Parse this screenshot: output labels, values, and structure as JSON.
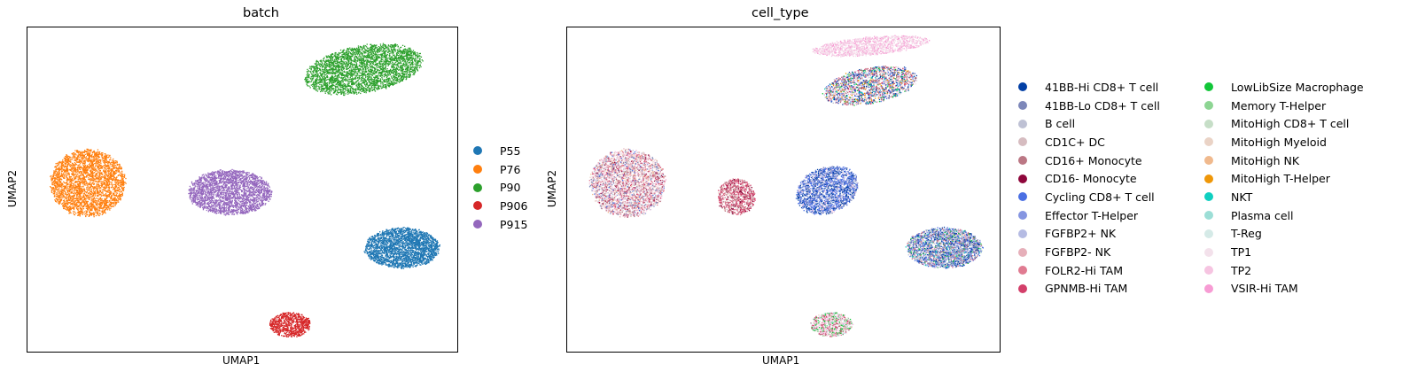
{
  "chart_data": [
    {
      "type": "scatter",
      "title": "batch",
      "xlabel": "UMAP1",
      "ylabel": "UMAP2",
      "xticks": [],
      "yticks": [],
      "legend_placement": "right",
      "series": [
        {
          "name": "P55",
          "color": "#1f77b4",
          "clusters": [
            {
              "cx": 0.87,
              "cy": -0.15,
              "rx": 0.09,
              "ry": 0.09,
              "rot": -10,
              "n": 2500
            }
          ]
        },
        {
          "name": "P76",
          "color": "#ff7f0e",
          "clusters": [
            {
              "cx": 0.14,
              "cy": 0.13,
              "rx": 0.09,
              "ry": 0.15,
              "rot": 0,
              "n": 3000
            }
          ]
        },
        {
          "name": "P90",
          "color": "#2ca02c",
          "clusters": [
            {
              "cx": 0.78,
              "cy": 0.62,
              "rx": 0.15,
              "ry": 0.1,
              "rot": 28,
              "n": 3200
            }
          ]
        },
        {
          "name": "P906",
          "color": "#d62728",
          "clusters": [
            {
              "cx": 0.61,
              "cy": -0.48,
              "rx": 0.05,
              "ry": 0.055,
              "rot": 0,
              "n": 800
            }
          ]
        },
        {
          "name": "P915",
          "color": "#9467bd",
          "clusters": [
            {
              "cx": 0.47,
              "cy": 0.09,
              "rx": 0.1,
              "ry": 0.1,
              "rot": -20,
              "n": 2500
            }
          ]
        }
      ]
    },
    {
      "type": "scatter",
      "title": "cell_type",
      "xlabel": "UMAP1",
      "ylabel": "UMAP2",
      "xticks": [],
      "yticks": [],
      "legend_placement": "right",
      "legend_columns": 2,
      "series": [
        {
          "name": "41BB-Hi CD8+ T cell",
          "color": "#023fa5"
        },
        {
          "name": "41BB-Lo CD8+ T cell",
          "color": "#7d87b9"
        },
        {
          "name": "B cell",
          "color": "#bec1d4"
        },
        {
          "name": "CD1C+ DC",
          "color": "#d6bcc0"
        },
        {
          "name": "CD16+ Monocyte",
          "color": "#bb7784"
        },
        {
          "name": "CD16- Monocyte",
          "color": "#8e063b"
        },
        {
          "name": "Cycling CD8+ T cell",
          "color": "#4a6fe3"
        },
        {
          "name": "Effector T-Helper",
          "color": "#8595e1"
        },
        {
          "name": "FGFBP2+ NK",
          "color": "#b5bbe3"
        },
        {
          "name": "FGFBP2- NK",
          "color": "#e6afb9"
        },
        {
          "name": "FOLR2-Hi TAM",
          "color": "#e07b91"
        },
        {
          "name": "GPNMB-Hi TAM",
          "color": "#d33f6a"
        },
        {
          "name": "LowLibSize Macrophage",
          "color": "#11c638"
        },
        {
          "name": "Memory T-Helper",
          "color": "#8dd593"
        },
        {
          "name": "MitoHigh CD8+ T cell",
          "color": "#c6dec7"
        },
        {
          "name": "MitoHigh Myeloid",
          "color": "#ead3c6"
        },
        {
          "name": "MitoHigh NK",
          "color": "#f0b98d"
        },
        {
          "name": "MitoHigh T-Helper",
          "color": "#ef9708"
        },
        {
          "name": "NKT",
          "color": "#0fcfc0"
        },
        {
          "name": "Plasma cell",
          "color": "#9cded6"
        },
        {
          "name": "T-Reg",
          "color": "#d5eae7"
        },
        {
          "name": "TP1",
          "color": "#f3e1eb"
        },
        {
          "name": "TP2",
          "color": "#f6c4e1"
        },
        {
          "name": "VSIR-Hi TAM",
          "color": "#f79cd4"
        }
      ],
      "clusters": [
        {
          "cx": 0.87,
          "cy": -0.15,
          "rx": 0.09,
          "ry": 0.09,
          "rot": -10,
          "n": 2500,
          "mix": [
            [
              "41BB-Hi CD8+ T cell",
              4
            ],
            [
              "41BB-Lo CD8+ T cell",
              3
            ],
            [
              "Cycling CD8+ T cell",
              4
            ],
            [
              "Effector T-Helper",
              2
            ],
            [
              "B cell",
              2
            ],
            [
              "CD16+ Monocyte",
              2
            ],
            [
              "NKT",
              1
            ],
            [
              "LowLibSize Macrophage",
              1
            ],
            [
              "MitoHigh CD8+ T cell",
              2
            ],
            [
              "FGFBP2+ NK",
              2
            ],
            [
              "TP2",
              1
            ],
            [
              "FOLR2-Hi TAM",
              1
            ]
          ]
        },
        {
          "cx": 0.14,
          "cy": 0.13,
          "rx": 0.09,
          "ry": 0.15,
          "rot": 0,
          "n": 3000,
          "mix": [
            [
              "TP1",
              4
            ],
            [
              "TP2",
              3
            ],
            [
              "CD16+ Monocyte",
              3
            ],
            [
              "FGFBP2- NK",
              3
            ],
            [
              "FOLR2-Hi TAM",
              2
            ],
            [
              "41BB-Lo CD8+ T cell",
              2
            ],
            [
              "GPNMB-Hi TAM",
              2
            ],
            [
              "MitoHigh Myeloid",
              2
            ],
            [
              "B cell",
              2
            ],
            [
              "Cycling CD8+ T cell",
              1
            ],
            [
              "CD16- Monocyte",
              1
            ],
            [
              "MitoHigh NK",
              1
            ]
          ]
        },
        {
          "cx": 0.6,
          "cy": 0.1,
          "rx": 0.07,
          "ry": 0.11,
          "rot": -15,
          "n": 2000,
          "mix": [
            [
              "41BB-Hi CD8+ T cell",
              4
            ],
            [
              "Cycling CD8+ T cell",
              5
            ],
            [
              "Effector T-Helper",
              3
            ],
            [
              "41BB-Lo CD8+ T cell",
              2
            ],
            [
              "FGFBP2+ NK",
              1
            ],
            [
              "TP2",
              1
            ]
          ]
        },
        {
          "cx": 0.39,
          "cy": 0.07,
          "rx": 0.045,
          "ry": 0.08,
          "rot": 0,
          "n": 800,
          "mix": [
            [
              "GPNMB-Hi TAM",
              4
            ],
            [
              "CD16+ Monocyte",
              3
            ],
            [
              "FOLR2-Hi TAM",
              3
            ],
            [
              "CD16- Monocyte",
              2
            ],
            [
              "MitoHigh Myeloid",
              1
            ],
            [
              "CD1C+ DC",
              1
            ]
          ]
        },
        {
          "cx": 0.7,
          "cy": 0.55,
          "rx": 0.12,
          "ry": 0.075,
          "rot": 28,
          "n": 1800,
          "mix": [
            [
              "CD16+ Monocyte",
              3
            ],
            [
              "41BB-Hi CD8+ T cell",
              3
            ],
            [
              "Cycling CD8+ T cell",
              2
            ],
            [
              "FGFBP2- NK",
              2
            ],
            [
              "LowLibSize Macrophage",
              1
            ],
            [
              "MitoHigh T-Helper",
              1
            ],
            [
              "NKT",
              1
            ],
            [
              "TP1",
              2
            ],
            [
              "GPNMB-Hi TAM",
              2
            ],
            [
              "B cell",
              2
            ]
          ]
        },
        {
          "cx": 0.7,
          "cy": 0.72,
          "rx": 0.14,
          "ry": 0.04,
          "rot": 10,
          "n": 1300,
          "mix": [
            [
              "TP2",
              5
            ],
            [
              "TP1",
              3
            ],
            [
              "VSIR-Hi TAM",
              2
            ]
          ]
        },
        {
          "cx": 0.61,
          "cy": -0.48,
          "rx": 0.05,
          "ry": 0.055,
          "rot": 0,
          "n": 800,
          "mix": [
            [
              "TP2",
              4
            ],
            [
              "TP1",
              2
            ],
            [
              "GPNMB-Hi TAM",
              2
            ],
            [
              "LowLibSize Macrophage",
              2
            ],
            [
              "Memory T-Helper",
              1
            ],
            [
              "Plasma cell",
              1
            ],
            [
              "MitoHigh Myeloid",
              1
            ],
            [
              "CD16+ Monocyte",
              1
            ]
          ]
        }
      ]
    }
  ]
}
